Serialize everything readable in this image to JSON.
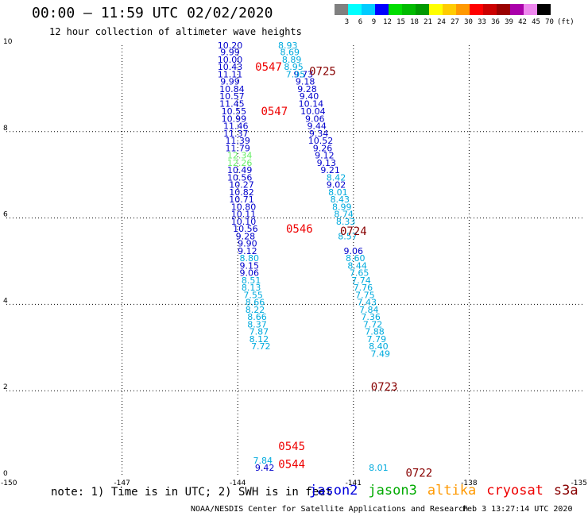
{
  "header": {
    "title": "00:00 – 11:59 UTC 02/02/2020",
    "subtitle": "12 hour collection of altimeter wave heights"
  },
  "colorbar": {
    "labels": [
      "3",
      "6",
      "9",
      "12",
      "15",
      "18",
      "21",
      "24",
      "27",
      "30",
      "33",
      "36",
      "39",
      "42",
      "45",
      "70"
    ],
    "unit_label": "(ft)",
    "colors": [
      "#808080",
      "#00ffff",
      "#00ccff",
      "#0000ff",
      "#00dd00",
      "#00bb00",
      "#009900",
      "#ffff00",
      "#ffcc00",
      "#ff9900",
      "#ff0000",
      "#cc0000",
      "#990000",
      "#aa00aa",
      "#ee88ee",
      "#000000"
    ]
  },
  "chart_data": {
    "type": "scatter",
    "xlim": [
      -150,
      -135
    ],
    "ylim": [
      0,
      10
    ],
    "x_ticks": [
      "-150",
      "-147",
      "-144",
      "-141",
      "-138",
      "-135"
    ],
    "y_ticks": [
      "0",
      "2",
      "4",
      "6",
      "8",
      "10"
    ],
    "grid": true,
    "series": [
      {
        "color": "#0000cc",
        "points": [
          {
            "x": -144.2,
            "y": 10.0,
            "label": "10.20"
          },
          {
            "x": -144.2,
            "y": 9.84,
            "label": "9.99"
          },
          {
            "x": -144.2,
            "y": 9.67,
            "label": "10.00"
          },
          {
            "x": -144.2,
            "y": 9.5,
            "label": "10.43"
          },
          {
            "x": -144.2,
            "y": 9.33,
            "label": "11.11"
          },
          {
            "x": -144.2,
            "y": 9.16,
            "label": "9.99"
          },
          {
            "x": -144.15,
            "y": 8.99,
            "label": "10.84"
          },
          {
            "x": -144.15,
            "y": 8.82,
            "label": "10.57"
          },
          {
            "x": -144.15,
            "y": 8.65,
            "label": "11.45"
          },
          {
            "x": -144.1,
            "y": 8.47,
            "label": "10.55"
          },
          {
            "x": -144.1,
            "y": 8.3,
            "label": "10.99"
          },
          {
            "x": -144.05,
            "y": 8.13,
            "label": "11.46"
          },
          {
            "x": -144.05,
            "y": 7.96,
            "label": "11.37"
          },
          {
            "x": -144.0,
            "y": 7.79,
            "label": "11.39"
          },
          {
            "x": -144.0,
            "y": 7.62,
            "label": "11.79"
          },
          {
            "x": -143.95,
            "y": 7.11,
            "label": "10.49"
          },
          {
            "x": -143.95,
            "y": 6.94,
            "label": "10.56"
          },
          {
            "x": -143.9,
            "y": 6.77,
            "label": "10.27"
          },
          {
            "x": -143.9,
            "y": 6.6,
            "label": "10.82"
          },
          {
            "x": -143.9,
            "y": 6.43,
            "label": "10.71"
          },
          {
            "x": -143.85,
            "y": 6.26,
            "label": "10.80"
          },
          {
            "x": -143.85,
            "y": 6.09,
            "label": "10.11"
          },
          {
            "x": -143.85,
            "y": 5.92,
            "label": "10.10"
          },
          {
            "x": -143.8,
            "y": 5.75,
            "label": "10.56"
          },
          {
            "x": -143.8,
            "y": 5.58,
            "label": "9.28"
          },
          {
            "x": -143.75,
            "y": 5.41,
            "label": "9.90"
          },
          {
            "x": -143.75,
            "y": 5.24,
            "label": "9.12"
          },
          {
            "x": -143.7,
            "y": 4.9,
            "label": "9.15"
          },
          {
            "x": -143.7,
            "y": 4.73,
            "label": "9.06"
          },
          {
            "x": -143.3,
            "y": 0.22,
            "label": "9.42"
          },
          {
            "x": -142.3,
            "y": 9.33,
            "label": "9.73"
          },
          {
            "x": -142.25,
            "y": 9.16,
            "label": "9.18"
          },
          {
            "x": -142.2,
            "y": 8.99,
            "label": "9.28"
          },
          {
            "x": -142.15,
            "y": 8.82,
            "label": "9.40"
          },
          {
            "x": -142.1,
            "y": 8.65,
            "label": "10.14"
          },
          {
            "x": -142.05,
            "y": 8.47,
            "label": "10.04"
          },
          {
            "x": -142.0,
            "y": 8.3,
            "label": "9.06"
          },
          {
            "x": -141.95,
            "y": 8.13,
            "label": "9.44"
          },
          {
            "x": -141.9,
            "y": 7.96,
            "label": "9.34"
          },
          {
            "x": -141.85,
            "y": 7.79,
            "label": "10.52"
          },
          {
            "x": -141.8,
            "y": 7.62,
            "label": "9.26"
          },
          {
            "x": -141.75,
            "y": 7.45,
            "label": "9.12"
          },
          {
            "x": -141.7,
            "y": 7.28,
            "label": "9.13"
          },
          {
            "x": -141.6,
            "y": 7.11,
            "label": "9.21"
          },
          {
            "x": -141.45,
            "y": 6.77,
            "label": "9.02"
          },
          {
            "x": -141.0,
            "y": 5.24,
            "label": "9.06"
          }
        ]
      },
      {
        "color": "#00aadd",
        "points": [
          {
            "x": -142.7,
            "y": 10.0,
            "label": "8.93"
          },
          {
            "x": -142.65,
            "y": 9.84,
            "label": "8.69"
          },
          {
            "x": -142.6,
            "y": 9.67,
            "label": "8.89"
          },
          {
            "x": -142.55,
            "y": 9.5,
            "label": "8.95"
          },
          {
            "x": -142.5,
            "y": 9.33,
            "label": "7.95"
          },
          {
            "x": -143.7,
            "y": 5.07,
            "label": "8.80"
          },
          {
            "x": -143.65,
            "y": 4.56,
            "label": "8.51"
          },
          {
            "x": -143.65,
            "y": 4.39,
            "label": "8.13"
          },
          {
            "x": -143.6,
            "y": 4.22,
            "label": "7.55"
          },
          {
            "x": -143.55,
            "y": 4.05,
            "label": "8.66"
          },
          {
            "x": -143.55,
            "y": 3.88,
            "label": "8.22"
          },
          {
            "x": -143.5,
            "y": 3.71,
            "label": "8.66"
          },
          {
            "x": -143.5,
            "y": 3.54,
            "label": "8.37"
          },
          {
            "x": -143.45,
            "y": 3.37,
            "label": "7.87"
          },
          {
            "x": -143.45,
            "y": 3.2,
            "label": "8.12"
          },
          {
            "x": -143.4,
            "y": 3.03,
            "label": "7.72"
          },
          {
            "x": -143.35,
            "y": 0.39,
            "label": "7.84"
          },
          {
            "x": -141.45,
            "y": 6.94,
            "label": "8.42"
          },
          {
            "x": -141.4,
            "y": 6.6,
            "label": "8.01"
          },
          {
            "x": -141.35,
            "y": 6.43,
            "label": "8.43"
          },
          {
            "x": -141.3,
            "y": 6.26,
            "label": "8.99"
          },
          {
            "x": -141.25,
            "y": 6.09,
            "label": "8.74"
          },
          {
            "x": -141.2,
            "y": 5.92,
            "label": "8.33"
          },
          {
            "x": -141.15,
            "y": 5.58,
            "label": "8.57"
          },
          {
            "x": -140.95,
            "y": 5.07,
            "label": "8.60"
          },
          {
            "x": -140.9,
            "y": 4.9,
            "label": "8.44"
          },
          {
            "x": -140.85,
            "y": 4.73,
            "label": "7.65"
          },
          {
            "x": -140.8,
            "y": 4.56,
            "label": "7.74"
          },
          {
            "x": -140.75,
            "y": 4.39,
            "label": "7.76"
          },
          {
            "x": -140.7,
            "y": 4.22,
            "label": "7.75"
          },
          {
            "x": -140.65,
            "y": 4.05,
            "label": "7.43"
          },
          {
            "x": -140.6,
            "y": 3.88,
            "label": "7.84"
          },
          {
            "x": -140.55,
            "y": 3.71,
            "label": "7.36"
          },
          {
            "x": -140.5,
            "y": 3.54,
            "label": "7.72"
          },
          {
            "x": -140.45,
            "y": 3.37,
            "label": "7.88"
          },
          {
            "x": -140.4,
            "y": 3.2,
            "label": "7.79"
          },
          {
            "x": -140.35,
            "y": 3.03,
            "label": "8.40"
          },
          {
            "x": -140.3,
            "y": 2.86,
            "label": "7.49"
          },
          {
            "x": -140.35,
            "y": 0.22,
            "label": "8.01"
          }
        ]
      },
      {
        "color": "#66ee66",
        "points": [
          {
            "x": -143.95,
            "y": 7.45,
            "label": "12.34"
          },
          {
            "x": -143.95,
            "y": 7.28,
            "label": "12.26"
          }
        ]
      }
    ],
    "time_labels": [
      {
        "x": -143.2,
        "y": 9.5,
        "label": "0547",
        "color": "#ee0000"
      },
      {
        "x": -143.05,
        "y": 8.47,
        "label": "0547",
        "color": "#ee0000"
      },
      {
        "x": -142.4,
        "y": 5.75,
        "label": "0546",
        "color": "#ee0000"
      },
      {
        "x": -142.6,
        "y": 0.72,
        "label": "0545",
        "color": "#ee0000"
      },
      {
        "x": -142.6,
        "y": 0.3,
        "label": "0544",
        "color": "#ee0000"
      },
      {
        "x": -141.8,
        "y": 9.4,
        "label": "0725",
        "color": "#880000"
      },
      {
        "x": -141.0,
        "y": 5.7,
        "label": "0724",
        "color": "#880000"
      },
      {
        "x": -140.2,
        "y": 2.1,
        "label": "0723",
        "color": "#880000"
      },
      {
        "x": -139.3,
        "y": 0.1,
        "label": "0722",
        "color": "#880000"
      }
    ]
  },
  "notes": {
    "note_text": "note: 1) Time is in UTC; 2) SWH is in feet"
  },
  "legend": {
    "items": [
      {
        "label": "jason2",
        "color": "#0000dd"
      },
      {
        "label": "jason3",
        "color": "#00aa00"
      },
      {
        "label": "altika",
        "color": "#ff9900"
      },
      {
        "label": "cryosat",
        "color": "#ee0000"
      },
      {
        "label": "s3a",
        "color": "#880000"
      }
    ]
  },
  "footer": {
    "credit": "NOAA/NESDIS Center for Satellite Applications and Research",
    "stamp": "Feb  3 13:27:14 UTC 2020"
  }
}
